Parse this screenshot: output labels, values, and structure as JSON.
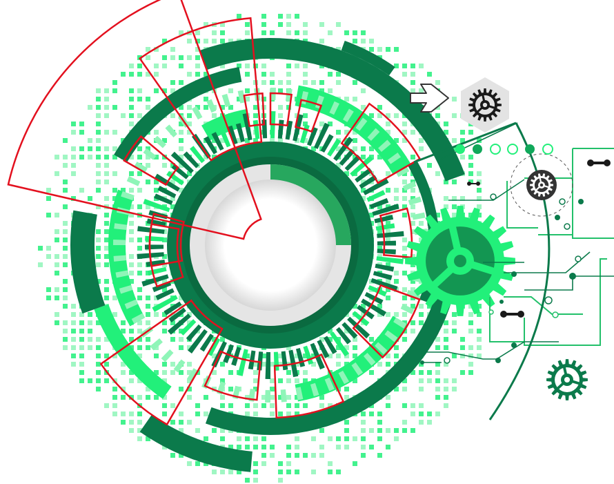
{
  "palette": {
    "dark_green": "#0b7a4b",
    "mid_green": "#10a85a",
    "bright_green": "#22f07a",
    "pale_green": "#8ff5b8",
    "red": "#e3101e",
    "gray": "#e6e6e6",
    "black": "#1a1a1a"
  },
  "icons": [
    "dial-ring",
    "gear-icon",
    "arrow-right-icon",
    "circuit-lines"
  ]
}
